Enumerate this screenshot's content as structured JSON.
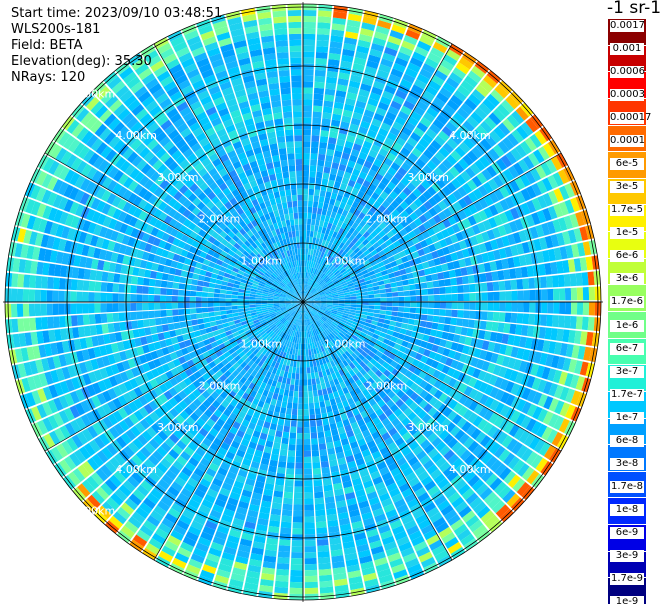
{
  "info": {
    "start_time": "Start time: 2023/09/10 03:48:51",
    "device": "WLS200s-181",
    "field": "Field: BETA",
    "elevation": "Elevation(deg): 35.30",
    "nrays": "NRays: 120"
  },
  "units_label": "-1 sr-1",
  "chart_data": {
    "type": "heatmap",
    "projection": "polar",
    "field": "BETA",
    "elevation_deg": 35.3,
    "n_rays": 120,
    "grid": true,
    "range_rings_km": [
      "1.00km",
      "2.00km",
      "3.00km",
      "4.00km",
      "5.00km"
    ],
    "colorbar": {
      "scale": "log",
      "tick_labels": [
        "0.0017",
        "0.001",
        "0.0006",
        "0.0003",
        "0.00017",
        "0.0001",
        "6e-5",
        "3e-5",
        "1.7e-5",
        "1e-5",
        "6e-6",
        "3e-6",
        "1.7e-6",
        "1e-6",
        "6e-7",
        "3e-7",
        "1.7e-7",
        "1e-7",
        "6e-8",
        "3e-8",
        "1.7e-8",
        "1e-8",
        "6e-9",
        "3e-9",
        "1.7e-9",
        "1e-9"
      ],
      "colors": [
        "#8b0000",
        "#c80000",
        "#ff0000",
        "#ff3500",
        "#ff6a00",
        "#ff9a00",
        "#ffc800",
        "#fff000",
        "#e8ff10",
        "#c0ff38",
        "#98ff60",
        "#70ff88",
        "#48ffb0",
        "#20f0d8",
        "#00c8ff",
        "#00a0ff",
        "#0078ff",
        "#0050ff",
        "#0028ff",
        "#0000e6",
        "#0000b4",
        "#000080"
      ]
    }
  }
}
